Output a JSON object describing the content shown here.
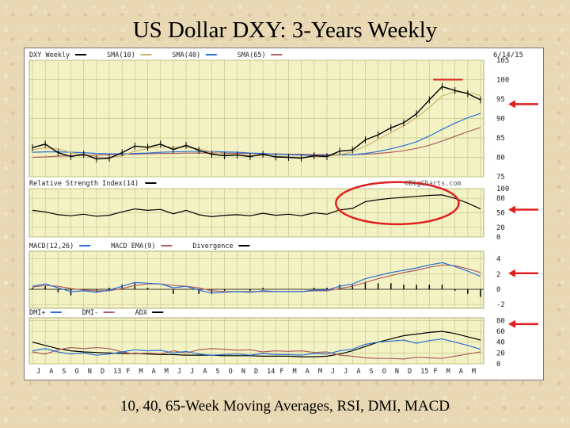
{
  "slide": {
    "title": "US Dollar DXY: 3-Years Weekly",
    "caption": "10, 40, 65-Week Moving Averages, RSI, DMI, MACD"
  },
  "colors": {
    "price": "#000000",
    "sma10": "#c8b46e",
    "sma40": "#2a70d8",
    "sma65": "#b06060",
    "macd": "#2a70d8",
    "ema": "#b06060",
    "divergence": "#000000",
    "dmi_plus": "#2a70d8",
    "dmi_minus": "#b06060",
    "adx": "#000000",
    "annotation": "#e02020",
    "panel_bg": "#f3f2c4",
    "grid": "#c9c78c"
  },
  "watermark": "©BigCharts.com",
  "chart_data": [
    {
      "type": "line",
      "panel": "price",
      "date_label": "6/14/15",
      "legend": [
        {
          "name": "DXY Weekly",
          "color": "#000000"
        },
        {
          "name": "SMA(10)",
          "color": "#c8b46e"
        },
        {
          "name": "SMA(40)",
          "color": "#2a70d8"
        },
        {
          "name": "SMA(65)",
          "color": "#b06060"
        }
      ],
      "x_ticks": [
        "J",
        "A",
        "S",
        "O",
        "N",
        "D",
        "13",
        "F",
        "M",
        "A",
        "M",
        "J",
        "J",
        "A",
        "S",
        "O",
        "N",
        "D",
        "14",
        "F",
        "M",
        "A",
        "M",
        "J",
        "J",
        "A",
        "S",
        "O",
        "N",
        "D",
        "15",
        "F",
        "M",
        "A",
        "M"
      ],
      "y_ticks": [
        75,
        80,
        85,
        90,
        95,
        100,
        105
      ],
      "ylim": [
        75,
        105
      ],
      "x_months": [
        0,
        1,
        2,
        3,
        4,
        5,
        6,
        7,
        8,
        9,
        10,
        11,
        12,
        13,
        14,
        15,
        16,
        17,
        18,
        19,
        20,
        21,
        22,
        23,
        24,
        25,
        26,
        27,
        28,
        29,
        30,
        31,
        32,
        33,
        34,
        35
      ],
      "series": [
        {
          "name": "DXY Weekly",
          "values": [
            82.5,
            83.4,
            81.2,
            80.2,
            80.8,
            79.6,
            79.8,
            81.2,
            82.9,
            82.6,
            83.4,
            82.0,
            83.1,
            81.8,
            80.8,
            80.4,
            80.6,
            80.2,
            80.8,
            80.1,
            80.0,
            79.8,
            80.4,
            80.2,
            81.6,
            81.9,
            84.5,
            85.8,
            87.6,
            88.9,
            91.2,
            94.8,
            98.2,
            97.2,
            96.4,
            94.8
          ]
        },
        {
          "name": "SMA(10)",
          "values": [
            82.0,
            82.4,
            82.2,
            81.2,
            80.6,
            80.1,
            79.9,
            80.4,
            81.6,
            82.3,
            82.8,
            82.6,
            82.6,
            82.2,
            81.4,
            80.8,
            80.6,
            80.4,
            80.5,
            80.3,
            80.1,
            80.0,
            80.1,
            80.2,
            80.7,
            81.4,
            82.9,
            84.6,
            86.4,
            88.1,
            90.2,
            92.9,
            95.8,
            96.9,
            96.7,
            95.9
          ]
        },
        {
          "name": "SMA(40)",
          "values": [
            81.3,
            81.4,
            81.4,
            81.3,
            81.2,
            81.0,
            80.9,
            80.9,
            81.0,
            81.1,
            81.3,
            81.4,
            81.5,
            81.5,
            81.5,
            81.4,
            81.3,
            81.1,
            81.0,
            80.8,
            80.7,
            80.6,
            80.5,
            80.5,
            80.6,
            80.7,
            81.0,
            81.5,
            82.2,
            83.0,
            84.0,
            85.5,
            87.2,
            88.8,
            90.2,
            91.3
          ]
        },
        {
          "name": "SMA(65)",
          "values": [
            80.0,
            80.1,
            80.3,
            80.4,
            80.5,
            80.6,
            80.7,
            80.8,
            80.8,
            80.9,
            81.0,
            81.0,
            81.1,
            81.1,
            81.1,
            81.1,
            81.0,
            81.0,
            80.9,
            80.9,
            80.8,
            80.8,
            80.7,
            80.7,
            80.7,
            80.7,
            80.8,
            81.0,
            81.3,
            81.7,
            82.3,
            83.1,
            84.2,
            85.4,
            86.6,
            87.7
          ]
        }
      ],
      "annotations": [
        {
          "kind": "horizontal-line",
          "y": 100,
          "x_from": 31.3,
          "x_to": 33.6
        },
        {
          "kind": "arrow-left",
          "y": 93.5
        }
      ]
    },
    {
      "type": "line",
      "panel": "rsi",
      "legend": [
        {
          "name": "Relative Strength Index(14)",
          "color": "#000000"
        }
      ],
      "y_ticks": [
        0,
        20,
        50,
        80,
        100
      ],
      "ylim": [
        0,
        100
      ],
      "series": [
        {
          "name": "Relative Strength Index(14)",
          "values": [
            55,
            52,
            46,
            44,
            47,
            43,
            45,
            52,
            58,
            55,
            57,
            48,
            55,
            46,
            42,
            45,
            46,
            44,
            49,
            45,
            47,
            44,
            50,
            47,
            56,
            59,
            73,
            77,
            80,
            82,
            84,
            86,
            87,
            80,
            70,
            58
          ]
        }
      ],
      "annotations": [
        {
          "kind": "ellipse",
          "x_from": 23.7,
          "x_to": 33.3,
          "y_center": 70
        },
        {
          "kind": "arrow-left",
          "y": 55
        }
      ]
    },
    {
      "type": "line",
      "panel": "macd",
      "legend": [
        {
          "name": "MACD(12,26)",
          "color": "#2a70d8"
        },
        {
          "name": "MACD EMA(9)",
          "color": "#b06060"
        },
        {
          "name": "Divergence",
          "color": "#000000"
        }
      ],
      "y_ticks": [
        4,
        2,
        0,
        -2
      ],
      "ylim": [
        -2.5,
        5
      ],
      "series": [
        {
          "name": "MACD(12,26)",
          "values": [
            0.4,
            0.7,
            0.2,
            -0.3,
            -0.2,
            -0.4,
            -0.1,
            0.4,
            0.9,
            0.8,
            0.7,
            0.2,
            0.4,
            -0.1,
            -0.5,
            -0.4,
            -0.3,
            -0.4,
            -0.2,
            -0.3,
            -0.3,
            -0.3,
            -0.1,
            -0.1,
            0.4,
            0.7,
            1.4,
            1.8,
            2.2,
            2.5,
            2.8,
            3.2,
            3.5,
            3.0,
            2.4,
            1.7
          ]
        },
        {
          "name": "MACD EMA(9)",
          "values": [
            0.3,
            0.5,
            0.4,
            0.1,
            -0.1,
            -0.2,
            -0.2,
            0.1,
            0.5,
            0.7,
            0.7,
            0.5,
            0.4,
            0.2,
            -0.2,
            -0.3,
            -0.3,
            -0.3,
            -0.3,
            -0.3,
            -0.3,
            -0.3,
            -0.2,
            -0.2,
            0.1,
            0.4,
            0.9,
            1.4,
            1.8,
            2.2,
            2.5,
            2.9,
            3.2,
            3.1,
            2.7,
            2.2
          ]
        }
      ],
      "annotations": [
        {
          "kind": "arrow-left",
          "y": 2
        }
      ]
    },
    {
      "type": "line",
      "panel": "dmi",
      "legend": [
        {
          "name": "DMI+",
          "color": "#2a70d8"
        },
        {
          "name": "DMI-",
          "color": "#b06060"
        },
        {
          "name": "ADX",
          "color": "#000000"
        }
      ],
      "y_ticks": [
        0,
        20,
        40,
        60,
        80
      ],
      "ylim": [
        0,
        85
      ],
      "series": [
        {
          "name": "DMI+",
          "values": [
            24,
            28,
            22,
            18,
            20,
            16,
            18,
            22,
            26,
            24,
            25,
            20,
            23,
            18,
            16,
            17,
            18,
            16,
            19,
            17,
            17,
            16,
            19,
            18,
            24,
            27,
            36,
            40,
            42,
            44,
            38,
            43,
            46,
            40,
            34,
            27
          ]
        },
        {
          "name": "DMI-",
          "values": [
            22,
            18,
            26,
            30,
            28,
            30,
            28,
            22,
            18,
            20,
            18,
            24,
            20,
            26,
            28,
            27,
            25,
            26,
            22,
            24,
            23,
            24,
            21,
            22,
            16,
            14,
            11,
            10,
            10,
            9,
            12,
            11,
            10,
            14,
            18,
            22
          ]
        },
        {
          "name": "ADX",
          "values": [
            40,
            34,
            28,
            24,
            22,
            21,
            20,
            19,
            19,
            18,
            17,
            17,
            16,
            16,
            16,
            15,
            15,
            15,
            14,
            14,
            14,
            13,
            13,
            14,
            18,
            24,
            32,
            40,
            46,
            52,
            55,
            58,
            60,
            56,
            50,
            44
          ]
        }
      ],
      "annotations": [
        {
          "kind": "arrow-left",
          "y": 72
        }
      ]
    }
  ]
}
